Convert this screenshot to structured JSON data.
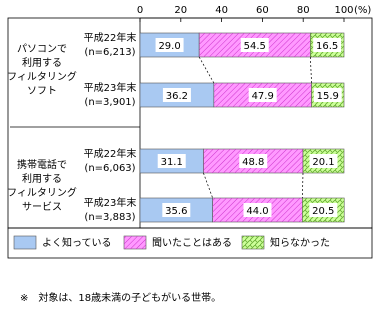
{
  "chart_data": {
    "type": "stacked-bar-horizontal",
    "groups": [
      {
        "label": [
          "パソコンで",
          "利用する",
          "フィルタリング",
          "ソフト"
        ]
      },
      {
        "label": [
          "携帯電話で",
          "利用する",
          "フィルタリング",
          "サービス"
        ]
      }
    ],
    "categories": [
      [
        "平成22年末",
        "(n=6,213)"
      ],
      [
        "平成23年末",
        "(n=3,901)"
      ],
      [
        "平成22年末",
        "(n=6,063)"
      ],
      [
        "平成23年末",
        "(n=3,883)"
      ]
    ],
    "series": [
      {
        "name": "よく知っている",
        "color": "#a9c9f2",
        "pattern": null,
        "values": [
          29.0,
          36.2,
          31.1,
          35.6
        ],
        "value_labels": [
          "29.0",
          "36.2",
          "31.1",
          "35.6"
        ]
      },
      {
        "name": "聞いたことはある",
        "color": "#ff99ff",
        "pattern": "diagonal",
        "values": [
          54.5,
          47.9,
          48.8,
          44.0
        ],
        "value_labels": [
          "54.5",
          "47.9",
          "48.8",
          "44.0"
        ]
      },
      {
        "name": "知らなかった",
        "color": "#ccff99",
        "pattern": "cross",
        "values": [
          16.5,
          15.9,
          20.1,
          20.5
        ],
        "value_labels": [
          "16.5",
          "15.9",
          "20.1",
          "20.5"
        ]
      }
    ],
    "xlim": [
      0,
      100
    ],
    "xticks": [
      0,
      20,
      40,
      60,
      80,
      100
    ],
    "x_unit": "(%)",
    "footnote": "※　対象は、18歳未満の子どもがいる世帯。"
  }
}
